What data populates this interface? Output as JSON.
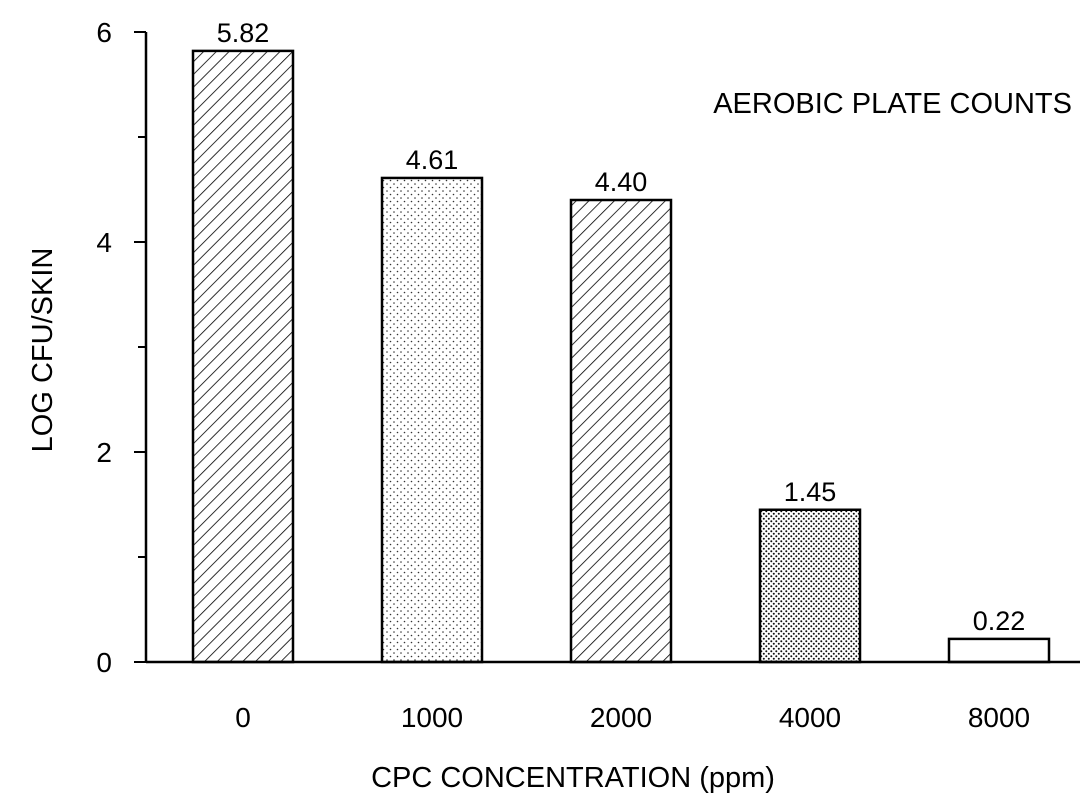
{
  "chart_data": {
    "type": "bar",
    "categories": [
      "0",
      "1000",
      "2000",
      "4000",
      "8000"
    ],
    "values": [
      5.82,
      4.61,
      4.4,
      1.45,
      0.22
    ],
    "data_labels": [
      "5.82",
      "4.61",
      "4.40",
      "1.45",
      "0.22"
    ],
    "patterns": [
      "hatch",
      "dots-light",
      "hatch",
      "dots-dense",
      "plain"
    ],
    "annotation": "AEROBIC PLATE COUNTS",
    "xlabel": "CPC CONCENTRATION (ppm)",
    "ylabel": "LOG CFU/SKIN",
    "ylim": [
      0,
      6
    ],
    "yticks": [
      0,
      2,
      4,
      6
    ],
    "ytick_labels": [
      "0",
      "2",
      "4",
      "6"
    ],
    "grid": false,
    "legend": "none"
  }
}
